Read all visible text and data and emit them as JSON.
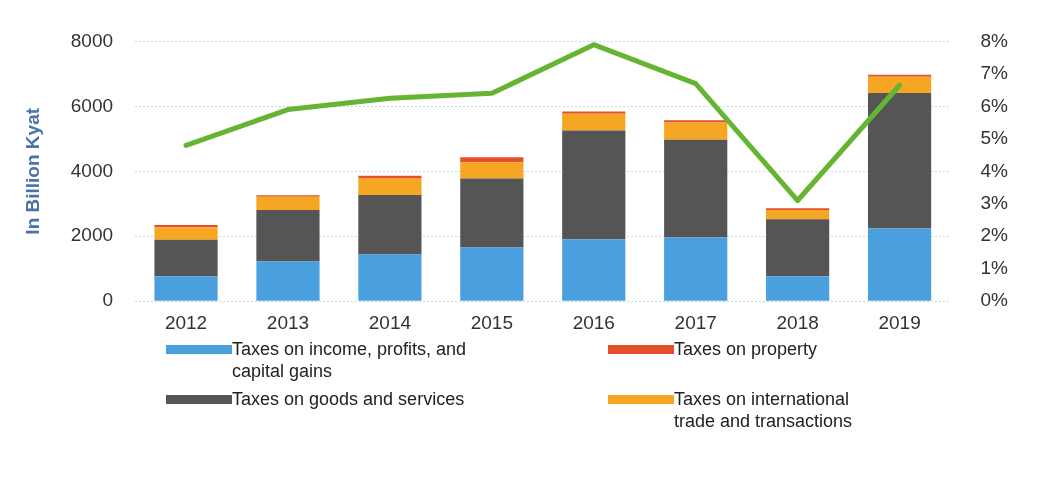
{
  "chart_data": {
    "type": "bar",
    "ylabel": "In Billion Kyat",
    "categories": [
      "2012",
      "2013",
      "2014",
      "2015",
      "2016",
      "2017",
      "2018",
      "2019"
    ],
    "stacked": true,
    "series": [
      {
        "name": "Taxes on income, profits, and capital gains",
        "color": "#4a9fdf",
        "values": [
          770,
          1220,
          1440,
          1650,
          1910,
          1960,
          770,
          2240
        ]
      },
      {
        "name": "Taxes on goods and services",
        "color": "#555555",
        "values": [
          1120,
          1590,
          1830,
          2130,
          3350,
          3010,
          1750,
          4170
        ]
      },
      {
        "name": "Taxes on international trade and transactions",
        "color": "#f5a623",
        "values": [
          390,
          410,
          520,
          500,
          510,
          530,
          290,
          500
        ]
      },
      {
        "name": "Taxes on property",
        "color": "#e5502a",
        "values": [
          70,
          40,
          70,
          150,
          70,
          70,
          50,
          60
        ]
      },
      {
        "type": "line",
        "axis": "y2",
        "color": "#66b532",
        "values": [
          4.8,
          5.9,
          6.25,
          6.4,
          7.9,
          6.7,
          3.1,
          6.65
        ]
      }
    ],
    "ylim": [
      0,
      8000
    ],
    "yticks": [
      0,
      2000,
      4000,
      6000,
      8000
    ],
    "y2lim": [
      0,
      8
    ],
    "y2ticks": [
      {
        "value": 0,
        "label": "0%"
      },
      {
        "value": 1,
        "label": "1%"
      },
      {
        "value": 2,
        "label": "2%"
      },
      {
        "value": 3,
        "label": "3%"
      },
      {
        "value": 4,
        "label": "4%"
      },
      {
        "value": 5,
        "label": "5%"
      },
      {
        "value": 6,
        "label": "6%"
      },
      {
        "value": 7,
        "label": "7%"
      },
      {
        "value": 8,
        "label": "8%"
      }
    ],
    "grid": "y",
    "legend": "bottom",
    "marker": "none"
  }
}
